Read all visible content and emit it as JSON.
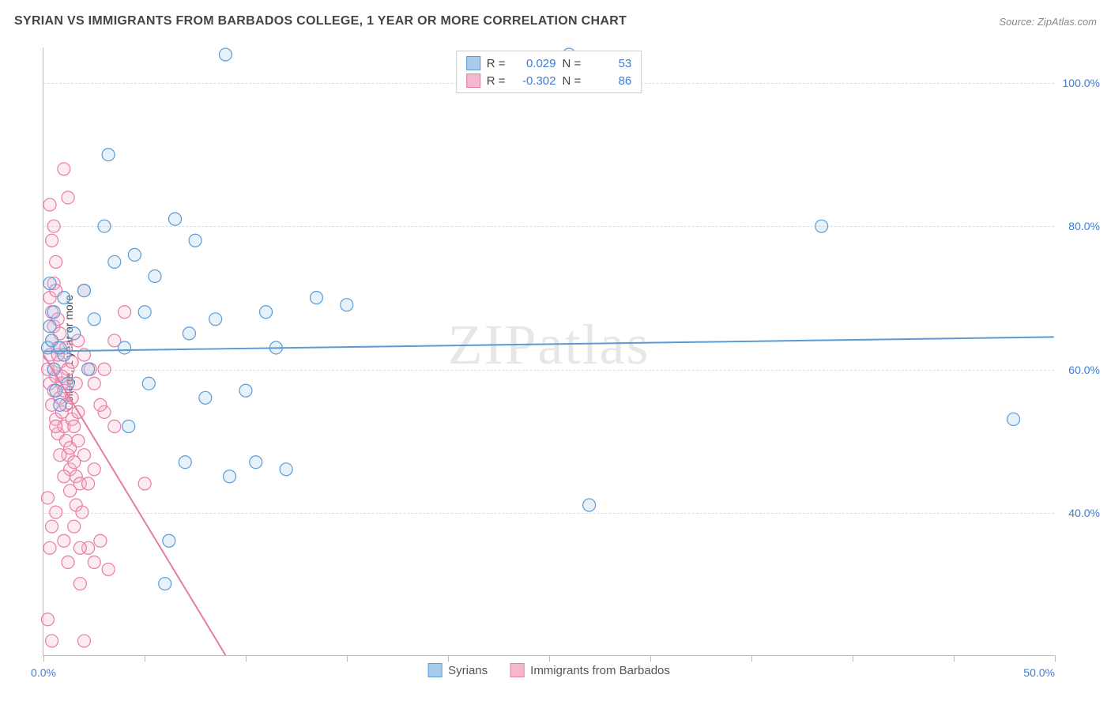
{
  "header": {
    "title": "SYRIAN VS IMMIGRANTS FROM BARBADOS COLLEGE, 1 YEAR OR MORE CORRELATION CHART",
    "source": "Source: ZipAtlas.com"
  },
  "chart": {
    "type": "scatter",
    "ylabel": "College, 1 year or more",
    "xlim": [
      0,
      50
    ],
    "ylim": [
      20,
      105
    ],
    "yticks": [
      40,
      60,
      80,
      100
    ],
    "ytick_labels": [
      "40.0%",
      "60.0%",
      "80.0%",
      "100.0%"
    ],
    "xticks": [
      0,
      5,
      10,
      15,
      20,
      25,
      30,
      35,
      40,
      45,
      50
    ],
    "xtick_labels": {
      "0": "0.0%",
      "50": "50.0%"
    },
    "grid_color": "#dddddd",
    "axis_color": "#bbbbbb",
    "background_color": "#ffffff",
    "marker_radius": 8,
    "marker_stroke_width": 1.2,
    "marker_fill_opacity": 0.28,
    "trend_line_width": 2,
    "series": [
      {
        "id": "syrians",
        "label": "Syrians",
        "color_stroke": "#5b9bd5",
        "color_fill": "#a9cbec",
        "r_value": "0.029",
        "n_value": "53",
        "trend": {
          "x1": 0,
          "y1": 62.5,
          "x2": 50,
          "y2": 64.5
        },
        "points": [
          [
            0.2,
            63
          ],
          [
            0.3,
            66
          ],
          [
            0.5,
            60
          ],
          [
            0.4,
            64
          ],
          [
            0.6,
            57
          ],
          [
            0.3,
            72
          ],
          [
            0.8,
            55
          ],
          [
            0.5,
            68
          ],
          [
            1.0,
            62
          ],
          [
            1.2,
            58
          ],
          [
            1.5,
            65
          ],
          [
            1.0,
            70
          ],
          [
            0.8,
            63
          ],
          [
            2.0,
            71
          ],
          [
            2.2,
            60
          ],
          [
            2.5,
            67
          ],
          [
            3.0,
            80
          ],
          [
            3.2,
            90
          ],
          [
            3.5,
            75
          ],
          [
            4.0,
            63
          ],
          [
            4.2,
            52
          ],
          [
            4.5,
            76
          ],
          [
            5.0,
            68
          ],
          [
            5.2,
            58
          ],
          [
            5.5,
            73
          ],
          [
            6.0,
            30
          ],
          [
            6.2,
            36
          ],
          [
            6.5,
            81
          ],
          [
            7.0,
            47
          ],
          [
            7.2,
            65
          ],
          [
            7.5,
            78
          ],
          [
            8.0,
            56
          ],
          [
            8.5,
            67
          ],
          [
            9.0,
            104
          ],
          [
            9.2,
            45
          ],
          [
            10.0,
            57
          ],
          [
            10.5,
            47
          ],
          [
            11.0,
            68
          ],
          [
            11.5,
            63
          ],
          [
            12.0,
            46
          ],
          [
            13.5,
            70
          ],
          [
            15.0,
            69
          ],
          [
            26.0,
            104
          ],
          [
            27.0,
            41
          ],
          [
            38.5,
            80
          ],
          [
            48.0,
            53
          ]
        ]
      },
      {
        "id": "barbados",
        "label": "Immigrants from Barbados",
        "color_stroke": "#e87ba4",
        "color_fill": "#f4b8ce",
        "r_value": "-0.302",
        "n_value": "86",
        "trend": {
          "x1": 0,
          "y1": 62,
          "x2": 9,
          "y2": 20
        },
        "points": [
          [
            0.2,
            60
          ],
          [
            0.3,
            58
          ],
          [
            0.4,
            55
          ],
          [
            0.3,
            62
          ],
          [
            0.5,
            57
          ],
          [
            0.4,
            64
          ],
          [
            0.6,
            53
          ],
          [
            0.5,
            66
          ],
          [
            0.7,
            51
          ],
          [
            0.6,
            59
          ],
          [
            0.8,
            56
          ],
          [
            0.7,
            63
          ],
          [
            0.9,
            54
          ],
          [
            0.8,
            61
          ],
          [
            1.0,
            52
          ],
          [
            0.9,
            58
          ],
          [
            1.1,
            50
          ],
          [
            1.0,
            57
          ],
          [
            1.2,
            48
          ],
          [
            1.1,
            55
          ],
          [
            1.3,
            46
          ],
          [
            1.2,
            60
          ],
          [
            1.4,
            53
          ],
          [
            1.3,
            49
          ],
          [
            1.5,
            47
          ],
          [
            1.4,
            56
          ],
          [
            1.6,
            45
          ],
          [
            1.5,
            52
          ],
          [
            1.7,
            50
          ],
          [
            1.6,
            58
          ],
          [
            1.8,
            44
          ],
          [
            1.7,
            54
          ],
          [
            0.3,
            70
          ],
          [
            0.5,
            72
          ],
          [
            0.4,
            68
          ],
          [
            0.6,
            71
          ],
          [
            0.7,
            67
          ],
          [
            0.8,
            65
          ],
          [
            0.5,
            80
          ],
          [
            0.3,
            83
          ],
          [
            1.0,
            88
          ],
          [
            0.4,
            78
          ],
          [
            0.6,
            75
          ],
          [
            1.2,
            84
          ],
          [
            2.0,
            22
          ],
          [
            1.8,
            30
          ],
          [
            2.2,
            35
          ],
          [
            2.5,
            33
          ],
          [
            2.8,
            36
          ],
          [
            3.0,
            54
          ],
          [
            3.2,
            32
          ],
          [
            3.5,
            52
          ],
          [
            2.0,
            62
          ],
          [
            2.3,
            60
          ],
          [
            2.5,
            58
          ],
          [
            2.8,
            55
          ],
          [
            0.2,
            42
          ],
          [
            0.4,
            38
          ],
          [
            0.3,
            35
          ],
          [
            0.6,
            40
          ],
          [
            1.0,
            36
          ],
          [
            1.2,
            33
          ],
          [
            1.5,
            38
          ],
          [
            1.8,
            35
          ],
          [
            2.0,
            48
          ],
          [
            2.2,
            44
          ],
          [
            2.5,
            46
          ],
          [
            3.0,
            60
          ],
          [
            3.5,
            64
          ],
          [
            4.0,
            68
          ],
          [
            5.0,
            44
          ],
          [
            0.2,
            25
          ],
          [
            0.4,
            22
          ],
          [
            0.6,
            52
          ],
          [
            0.8,
            48
          ],
          [
            1.0,
            45
          ],
          [
            1.3,
            43
          ],
          [
            1.6,
            41
          ],
          [
            1.9,
            40
          ],
          [
            0.5,
            60
          ],
          [
            0.7,
            62
          ],
          [
            0.9,
            59
          ],
          [
            1.1,
            63
          ],
          [
            1.4,
            61
          ],
          [
            1.7,
            64
          ],
          [
            2.0,
            71
          ]
        ]
      }
    ]
  },
  "watermark": "ZIPatlas",
  "legend_top": {
    "r_label": "R =",
    "n_label": "N ="
  },
  "legend_bottom": {}
}
